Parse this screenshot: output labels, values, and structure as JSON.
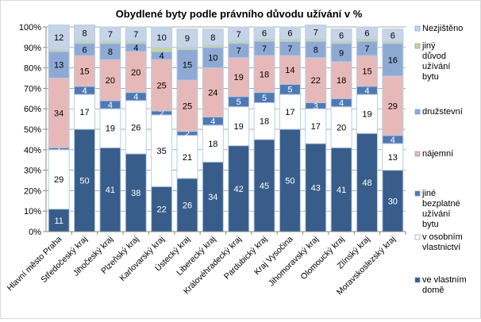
{
  "chart_data": {
    "type": "bar",
    "stacked": true,
    "title": "Obydlené byty podle právního důvodu užívání v %",
    "ylim": [
      0,
      100
    ],
    "yticks": [
      "0%",
      "10%",
      "20%",
      "30%",
      "40%",
      "50%",
      "60%",
      "70%",
      "80%",
      "90%",
      "100%"
    ],
    "grid": true,
    "legend_position": "right",
    "categories": [
      "Hlavní město Praha",
      "Středočeský kraj",
      "Jihočeský kraj",
      "Plzeňský kraj",
      "Karlovarský kraj",
      "Ústecký kraj",
      "Liberecký kraj",
      "Královéhradecký kraj",
      "Pardubický kraj",
      "Kraj Vysočina",
      "Jihomoravský kraj",
      "Olomoucký kraj",
      "Zlínský kraj",
      "Moravskoslezský kraj"
    ],
    "series": [
      {
        "name": "ve vlastním domě",
        "color": "#385d8a",
        "label_color": "#ffffff",
        "show_labels": true,
        "values": [
          11,
          50,
          41,
          38,
          22,
          26,
          34,
          42,
          45,
          50,
          43,
          41,
          48,
          30
        ]
      },
      {
        "name": "v osobním vlastnictví",
        "color": "#ffffff",
        "label_color": "#000000",
        "show_labels": true,
        "values": [
          29,
          17,
          19,
          26,
          35,
          21,
          18,
          19,
          18,
          17,
          17,
          20,
          19,
          13
        ]
      },
      {
        "name": "jiné bezplatné užívání bytu",
        "color": "#4f79b3",
        "label_color": "#ffffff",
        "show_labels": true,
        "values": [
          1,
          4,
          4,
          4,
          2,
          2,
          4,
          5,
          5,
          5,
          3,
          4,
          4,
          4
        ]
      },
      {
        "name": "nájemní",
        "color": "#e6b9b8",
        "label_color": "#000000",
        "show_labels": true,
        "values": [
          34,
          15,
          20,
          20,
          25,
          25,
          24,
          19,
          18,
          14,
          22,
          18,
          15,
          29
        ]
      },
      {
        "name": "družstevní",
        "color": "#8eaad4",
        "label_color": "#000000",
        "show_labels": true,
        "values": [
          13,
          6,
          8,
          4,
          4,
          15,
          10,
          7,
          7,
          7,
          8,
          9,
          7,
          16
        ]
      },
      {
        "name": "jiný důvod užívání bytu",
        "color": "#c3d69b",
        "label_color": "#000000",
        "show_labels": false,
        "values": [
          1,
          1,
          1,
          1,
          2,
          1,
          1,
          1,
          1,
          1,
          1,
          1,
          1,
          1
        ]
      },
      {
        "name": "Nezjištěno",
        "color": "#c6d4e8",
        "label_color": "#000000",
        "show_labels": true,
        "values": [
          12,
          8,
          7,
          7,
          10,
          9,
          8,
          7,
          6,
          6,
          7,
          6,
          6,
          6
        ]
      }
    ],
    "legend": [
      {
        "lines": [
          "Nezjištěno"
        ],
        "series": 6
      },
      {
        "lines": [
          "jiný",
          "důvod",
          "užívání",
          "bytu"
        ],
        "series": 5
      },
      {
        "lines": [
          "družstevní"
        ],
        "series": 4
      },
      {
        "lines": [
          "nájemní"
        ],
        "series": 3
      },
      {
        "lines": [
          "jiné",
          "bezplatné",
          "užívání",
          "bytu"
        ],
        "series": 2
      },
      {
        "lines": [
          "v osobním",
          "vlastnictví"
        ],
        "series": 1
      },
      {
        "lines": [
          "ve vlastním",
          "domě"
        ],
        "series": 0
      }
    ]
  }
}
